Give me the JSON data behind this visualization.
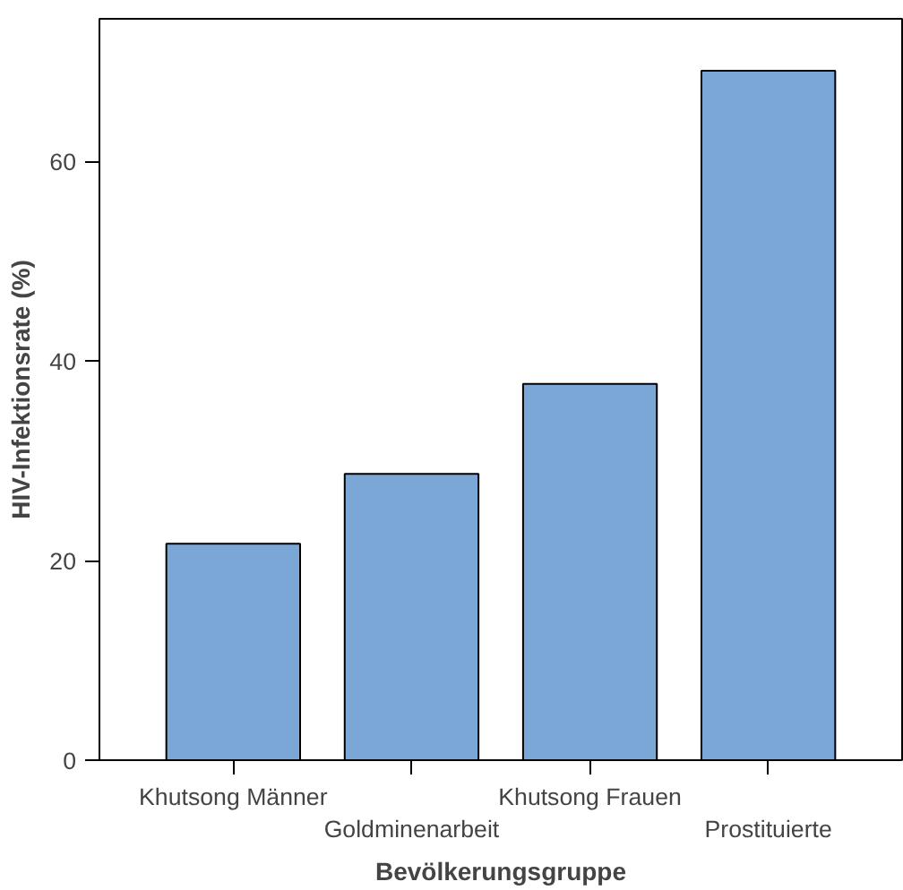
{
  "chart_data": {
    "type": "bar",
    "xlabel": "Bevölkerungsgruppe",
    "ylabel": "HIV-Infektionsrate (%)",
    "categories": [
      "Khutsong Männer",
      "Goldminenarbeit",
      "Khutsong Frauen",
      "Prostituierte"
    ],
    "values": [
      21.7,
      28.7,
      37.7,
      69.1
    ],
    "color": "#7ba7d7",
    "ylim": [
      0,
      74.3
    ],
    "yticks": [
      0,
      20,
      40,
      60
    ],
    "grid": false
  }
}
